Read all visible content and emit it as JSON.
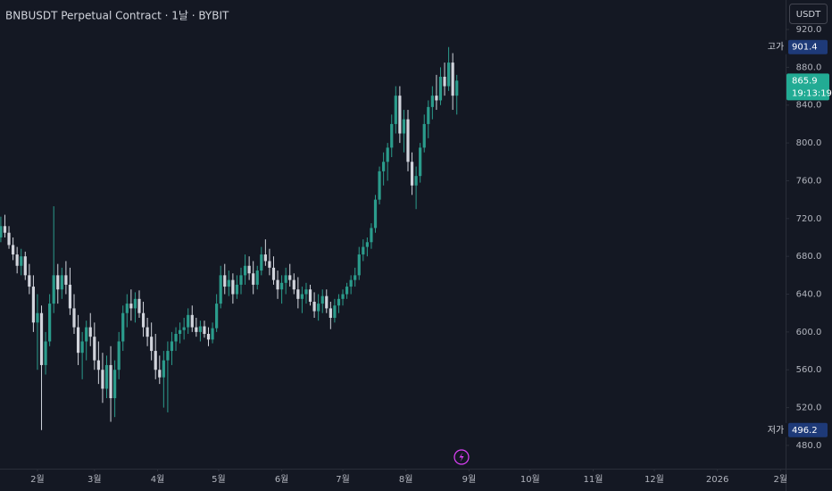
{
  "chart_data": {
    "type": "candlestick",
    "title": "BNBUSDT Perpetual Contract · 1날 · BYBIT",
    "currency": "USDT",
    "up_color": "#2b9c8c",
    "down_color": "#d1d4dc",
    "grid": false,
    "xlim": [
      13.6,
      399.5
    ],
    "xticks": [
      {
        "value": 32,
        "label": "2월"
      },
      {
        "value": 60,
        "label": "3월"
      },
      {
        "value": 91,
        "label": "4월"
      },
      {
        "value": 121,
        "label": "5월"
      },
      {
        "value": 152,
        "label": "6월"
      },
      {
        "value": 182,
        "label": "7월"
      },
      {
        "value": 213,
        "label": "8월"
      },
      {
        "value": 244,
        "label": "9월"
      },
      {
        "value": 274,
        "label": "10월"
      },
      {
        "value": 305,
        "label": "11월"
      },
      {
        "value": 335,
        "label": "12월"
      },
      {
        "value": 366,
        "label": "2026"
      },
      {
        "value": 397,
        "label": "2월"
      }
    ],
    "ylim": [
      455.4,
      951.2
    ],
    "yticks": [
      {
        "value": 920,
        "label": "920.0"
      },
      {
        "value": 880,
        "label": "880.0"
      },
      {
        "value": 840,
        "label": "840.0"
      },
      {
        "value": 800,
        "label": "800.0"
      },
      {
        "value": 760,
        "label": "760.0"
      },
      {
        "value": 720,
        "label": "720.0"
      },
      {
        "value": 680,
        "label": "680.0"
      },
      {
        "value": 640,
        "label": "640.0"
      },
      {
        "value": 600,
        "label": "600.0"
      },
      {
        "value": 560,
        "label": "560.0"
      },
      {
        "value": 520,
        "label": "520.0"
      },
      {
        "value": 480,
        "label": "480.0"
      }
    ],
    "high_marker": {
      "label": "고가",
      "value": 901.4
    },
    "low_marker": {
      "label": "저가",
      "value": 496.2
    },
    "last_price": {
      "value": 865.9,
      "countdown": "19:13:19"
    },
    "candles": [
      [
        14,
        700,
        722,
        695,
        712
      ],
      [
        16,
        712,
        724,
        700,
        705
      ],
      [
        18,
        705,
        712,
        688,
        692
      ],
      [
        20,
        692,
        700,
        676,
        682
      ],
      [
        22,
        682,
        690,
        662,
        670
      ],
      [
        24,
        670,
        688,
        660,
        680
      ],
      [
        26,
        680,
        685,
        655,
        660
      ],
      [
        28,
        660,
        672,
        640,
        648
      ],
      [
        30,
        648,
        660,
        600,
        610
      ],
      [
        32,
        610,
        640,
        560,
        620
      ],
      [
        34,
        620,
        628,
        496.2,
        565
      ],
      [
        36,
        565,
        600,
        555,
        590
      ],
      [
        38,
        590,
        640,
        585,
        630
      ],
      [
        40,
        630,
        733,
        620,
        660
      ],
      [
        42,
        660,
        672,
        630,
        645
      ],
      [
        44,
        645,
        668,
        635,
        660
      ],
      [
        46,
        660,
        675,
        640,
        650
      ],
      [
        48,
        650,
        668,
        618,
        625
      ],
      [
        50,
        625,
        640,
        598,
        605
      ],
      [
        52,
        605,
        618,
        565,
        578
      ],
      [
        54,
        578,
        600,
        550,
        590
      ],
      [
        56,
        590,
        612,
        570,
        605
      ],
      [
        58,
        605,
        620,
        585,
        595
      ],
      [
        60,
        595,
        610,
        560,
        570
      ],
      [
        62,
        570,
        590,
        545,
        560
      ],
      [
        64,
        560,
        578,
        525,
        540
      ],
      [
        66,
        540,
        575,
        530,
        565
      ],
      [
        68,
        565,
        585,
        505,
        530
      ],
      [
        70,
        530,
        570,
        510,
        560
      ],
      [
        72,
        560,
        600,
        550,
        590
      ],
      [
        74,
        590,
        628,
        580,
        620
      ],
      [
        76,
        620,
        640,
        605,
        630
      ],
      [
        78,
        630,
        645,
        612,
        625
      ],
      [
        80,
        625,
        642,
        610,
        635
      ],
      [
        82,
        635,
        644,
        615,
        620
      ],
      [
        84,
        620,
        632,
        595,
        605
      ],
      [
        86,
        605,
        615,
        585,
        595
      ],
      [
        88,
        595,
        610,
        570,
        580
      ],
      [
        90,
        580,
        598,
        550,
        560
      ],
      [
        92,
        560,
        575,
        545,
        552
      ],
      [
        94,
        552,
        580,
        520,
        570
      ],
      [
        96,
        570,
        590,
        515,
        580
      ],
      [
        98,
        580,
        600,
        565,
        590
      ],
      [
        100,
        590,
        605,
        580,
        598
      ],
      [
        102,
        598,
        610,
        588,
        602
      ],
      [
        104,
        602,
        615,
        592,
        605
      ],
      [
        106,
        605,
        625,
        598,
        618
      ],
      [
        108,
        618,
        628,
        600,
        605
      ],
      [
        110,
        605,
        615,
        595,
        600
      ],
      [
        112,
        600,
        612,
        590,
        606
      ],
      [
        114,
        606,
        612,
        594,
        598
      ],
      [
        116,
        598,
        605,
        585,
        592
      ],
      [
        118,
        592,
        610,
        588,
        604
      ],
      [
        120,
        604,
        640,
        600,
        630
      ],
      [
        122,
        630,
        670,
        625,
        660
      ],
      [
        124,
        660,
        672,
        640,
        648
      ],
      [
        126,
        648,
        665,
        638,
        655
      ],
      [
        128,
        655,
        662,
        630,
        640
      ],
      [
        130,
        640,
        660,
        635,
        650
      ],
      [
        132,
        650,
        668,
        640,
        660
      ],
      [
        134,
        660,
        682,
        650,
        670
      ],
      [
        136,
        670,
        680,
        655,
        662
      ],
      [
        138,
        662,
        675,
        640,
        650
      ],
      [
        140,
        650,
        670,
        645,
        665
      ],
      [
        142,
        665,
        690,
        660,
        682
      ],
      [
        144,
        682,
        698,
        670,
        675
      ],
      [
        146,
        675,
        688,
        660,
        668
      ],
      [
        148,
        668,
        680,
        650,
        655
      ],
      [
        150,
        655,
        665,
        635,
        645
      ],
      [
        152,
        645,
        660,
        630,
        652
      ],
      [
        154,
        652,
        668,
        640,
        660
      ],
      [
        156,
        660,
        672,
        648,
        655
      ],
      [
        158,
        655,
        662,
        640,
        645
      ],
      [
        160,
        645,
        658,
        625,
        635
      ],
      [
        162,
        635,
        648,
        620,
        640
      ],
      [
        164,
        640,
        652,
        630,
        645
      ],
      [
        166,
        645,
        650,
        628,
        632
      ],
      [
        168,
        632,
        642,
        615,
        622
      ],
      [
        170,
        622,
        640,
        612,
        630
      ],
      [
        172,
        630,
        645,
        620,
        638
      ],
      [
        174,
        638,
        645,
        620,
        625
      ],
      [
        176,
        625,
        632,
        603,
        615
      ],
      [
        178,
        615,
        635,
        610,
        628
      ],
      [
        180,
        628,
        640,
        620,
        635
      ],
      [
        182,
        635,
        645,
        628,
        640
      ],
      [
        184,
        640,
        652,
        635,
        648
      ],
      [
        186,
        648,
        660,
        640,
        655
      ],
      [
        188,
        655,
        668,
        648,
        660
      ],
      [
        190,
        660,
        690,
        655,
        682
      ],
      [
        192,
        682,
        698,
        675,
        690
      ],
      [
        194,
        690,
        700,
        680,
        695
      ],
      [
        196,
        695,
        715,
        688,
        710
      ],
      [
        198,
        710,
        745,
        705,
        740
      ],
      [
        200,
        740,
        775,
        735,
        770
      ],
      [
        202,
        770,
        790,
        755,
        780
      ],
      [
        204,
        780,
        800,
        760,
        795
      ],
      [
        206,
        795,
        830,
        785,
        820
      ],
      [
        208,
        820,
        860,
        810,
        850
      ],
      [
        210,
        850,
        860,
        800,
        810
      ],
      [
        212,
        810,
        835,
        790,
        825
      ],
      [
        214,
        825,
        835,
        770,
        780
      ],
      [
        216,
        780,
        790,
        745,
        755
      ],
      [
        218,
        755,
        775,
        730,
        765
      ],
      [
        220,
        765,
        800,
        758,
        795
      ],
      [
        222,
        795,
        830,
        790,
        820
      ],
      [
        224,
        820,
        845,
        805,
        838
      ],
      [
        226,
        838,
        860,
        825,
        850
      ],
      [
        228,
        850,
        872,
        835,
        845
      ],
      [
        230,
        845,
        880,
        840,
        870
      ],
      [
        232,
        870,
        885,
        850,
        860
      ],
      [
        234,
        860,
        901.4,
        855,
        885
      ],
      [
        236,
        885,
        895,
        835,
        850
      ],
      [
        238,
        850,
        872,
        830,
        865.9
      ]
    ]
  }
}
